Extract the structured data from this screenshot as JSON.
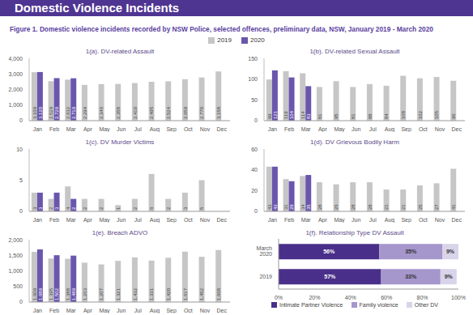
{
  "title": "Domestic Violence Incidents",
  "subtitle": "Figure 1. Domestic violence incidents recorded by NSW Police, selected offences, preliminary data, NSW, January 2019 - March 2020",
  "chart_data": [
    {
      "type": "bar",
      "title": "1(a). DV-related Assault",
      "categories": [
        "Jan",
        "Feb",
        "Mar",
        "Apr",
        "May",
        "Jun",
        "Jul",
        "Aug",
        "Sep",
        "Oct",
        "Nov",
        "Dec"
      ],
      "series": [
        {
          "name": "2019",
          "color": "#c6c6c6",
          "values": [
            3109,
            2529,
            2632,
            2294,
            2346,
            2358,
            2410,
            2495,
            2524,
            2659,
            2770,
            3158
          ],
          "value_labels": [
            "3,109",
            "2,529",
            "2,632",
            "2,294",
            "2,346",
            "2,358",
            "2,410",
            "2,495",
            "2,524",
            "2,659",
            "2,770",
            "3,158"
          ]
        },
        {
          "name": "2020",
          "color": "#6b56ad",
          "values": [
            3120,
            2729,
            2719,
            null,
            null,
            null,
            null,
            null,
            null,
            null,
            null,
            null
          ],
          "value_labels": [
            "3,120",
            "2,729",
            "2,719",
            null,
            null,
            null,
            null,
            null,
            null,
            null,
            null,
            null
          ]
        }
      ],
      "ylim": [
        0,
        4000
      ],
      "yticks": [
        0,
        {
          "value": 1000,
          "label": "1,000"
        },
        {
          "value": 2000,
          "label": "2,000"
        },
        {
          "value": 3000,
          "label": "3,000"
        },
        {
          "value": 4000,
          "label": "4,000"
        }
      ],
      "data_labels": true
    },
    {
      "type": "bar",
      "title": "1(b). DV-related Sexual Assault",
      "categories": [
        "Jan",
        "Feb",
        "Mar",
        "Apr",
        "May",
        "Jun",
        "Jul",
        "Aug",
        "Sep",
        "Oct",
        "Nov",
        "Dec"
      ],
      "series": [
        {
          "name": "2019",
          "color": "#c6c6c6",
          "values": [
            99,
            119,
            114,
            81,
            95,
            81,
            88,
            84,
            108,
            102,
            105,
            96
          ]
        },
        {
          "name": "2020",
          "color": "#6b56ad",
          "values": [
            121,
            104,
            83,
            null,
            null,
            null,
            null,
            null,
            null,
            null,
            null,
            null
          ]
        }
      ],
      "ylim": [
        0,
        150
      ],
      "yticks": [
        0,
        50,
        100,
        150
      ],
      "data_labels": true
    },
    {
      "type": "bar",
      "title": "1(c). DV Murder Victims",
      "categories": [
        "Jan",
        "Feb",
        "Mar",
        "Apr",
        "May",
        "Jun",
        "Jul",
        "Aug",
        "Sep",
        "Oct",
        "Nov",
        "Dec"
      ],
      "series": [
        {
          "name": "2019",
          "color": "#c6c6c6",
          "values": [
            3,
            2,
            4,
            2,
            2,
            1,
            2,
            6,
            2,
            3,
            5,
            0
          ]
        },
        {
          "name": "2020",
          "color": "#6b56ad",
          "values": [
            3,
            3,
            2,
            null,
            null,
            null,
            null,
            null,
            null,
            null,
            null,
            null
          ]
        }
      ],
      "ylim": [
        0,
        10
      ],
      "yticks": [
        0,
        5,
        10
      ],
      "data_labels": true
    },
    {
      "type": "bar",
      "title": "1(d). DV Grievous Bodily Harm",
      "categories": [
        "Jan",
        "Feb",
        "Mar",
        "Apr",
        "May",
        "Jun",
        "Jul",
        "Aug",
        "Sep",
        "Oct",
        "Nov",
        "Dec"
      ],
      "series": [
        {
          "name": "2019",
          "color": "#c6c6c6",
          "values": [
            43,
            31,
            34,
            28,
            26,
            28,
            28,
            21,
            21,
            25,
            27,
            41
          ]
        },
        {
          "name": "2020",
          "color": "#6b56ad",
          "values": [
            43,
            29,
            35,
            null,
            null,
            null,
            null,
            null,
            null,
            null,
            null,
            null
          ]
        }
      ],
      "ylim": [
        0,
        60
      ],
      "yticks": [
        0,
        20,
        40,
        60
      ],
      "data_labels": true
    },
    {
      "type": "bar",
      "title": "1(e). Breach ADVO",
      "categories": [
        "Jan",
        "Feb",
        "Mar",
        "Apr",
        "May",
        "Jun",
        "Jul",
        "Aug",
        "Sep",
        "Oct",
        "Nov",
        "Dec"
      ],
      "series": [
        {
          "name": "2019",
          "color": "#c6c6c6",
          "values": [
            1609,
            1395,
            1388,
            1263,
            1207,
            1321,
            1432,
            1331,
            1420,
            1617,
            1452,
            1668
          ],
          "value_labels": [
            "1,609",
            "1,395",
            "1,388",
            "1,263",
            "1,207",
            "1,321",
            "1,432",
            "1,331",
            "1,420",
            "1,617",
            "1,452",
            "1,668"
          ]
        },
        {
          "name": "2020",
          "color": "#6b56ad",
          "values": [
            1689,
            1502,
            1489,
            null,
            null,
            null,
            null,
            null,
            null,
            null,
            null,
            null
          ],
          "value_labels": [
            "1,689",
            "1,502",
            "1,489",
            null,
            null,
            null,
            null,
            null,
            null,
            null,
            null,
            null
          ]
        }
      ],
      "ylim": [
        0,
        2000
      ],
      "yticks": [
        0,
        500,
        {
          "value": 1000,
          "label": "1,000"
        },
        {
          "value": 1500,
          "label": "1,500"
        },
        {
          "value": 2000,
          "label": "2,000"
        }
      ],
      "data_labels": true
    },
    {
      "type": "bar",
      "orientation": "horizontal",
      "stacked": true,
      "title": "1(f). Relationship Type DV Assault",
      "categories": [
        "March 2020",
        "2019"
      ],
      "series": [
        {
          "name": "Intimate Partner Violence",
          "color": "#4a2f8a",
          "values": [
            56,
            57
          ],
          "value_labels": [
            "56%",
            "57%"
          ]
        },
        {
          "name": "Family violence",
          "color": "#a596cc",
          "values": [
            35,
            33
          ],
          "value_labels": [
            "35%",
            "33%"
          ]
        },
        {
          "name": "Other DV",
          "color": "#d9d4ea",
          "values": [
            9,
            9
          ],
          "value_labels": [
            "9%",
            "9%"
          ]
        }
      ],
      "xlim": [
        0,
        100
      ],
      "xticks": [
        {
          "value": 0,
          "label": "0%"
        },
        {
          "value": 20,
          "label": "20%"
        },
        {
          "value": 40,
          "label": "40%"
        },
        {
          "value": 60,
          "label": "60%"
        },
        {
          "value": 80,
          "label": "80%"
        },
        {
          "value": 100,
          "label": "100%"
        }
      ],
      "data_labels": true,
      "legend": "bottom"
    }
  ]
}
